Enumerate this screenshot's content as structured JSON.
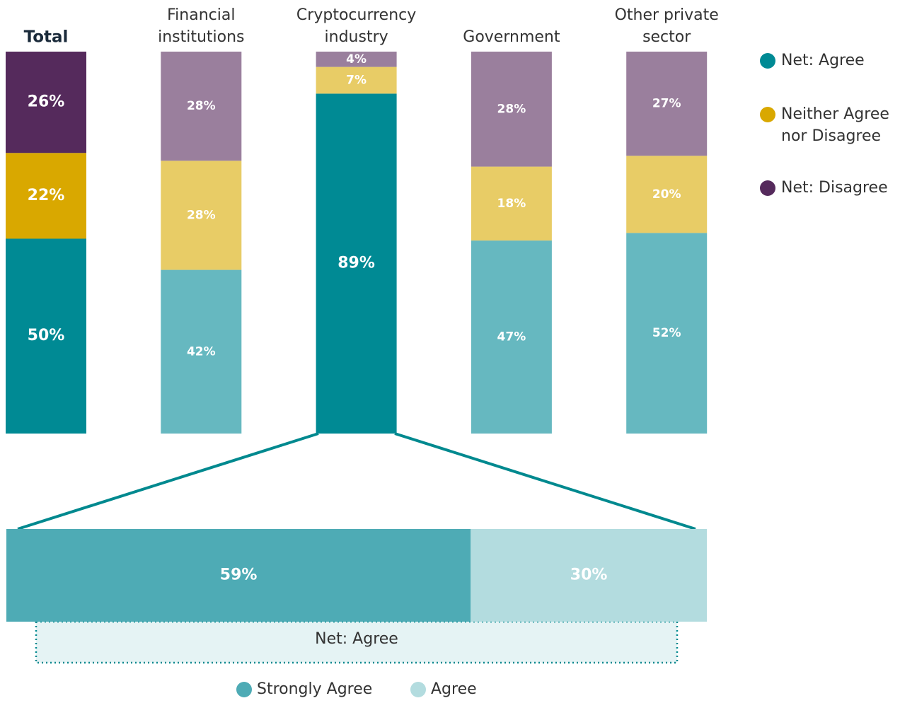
{
  "chart_data": [
    {
      "type": "bar",
      "stacked": true,
      "legend": "right",
      "categories": [
        "Total",
        "Financial institutions",
        "Cryptocurrency industry",
        "Government",
        "Other private sector"
      ],
      "series": [
        {
          "name": "Net: Agree",
          "color": "#008a94",
          "bar_colors": [
            "#008a94",
            "#66b8c0",
            "#008a94",
            "#66b8c0",
            "#66b8c0"
          ],
          "values": [
            50,
            42,
            89,
            47,
            52
          ],
          "value_labels": [
            "50%",
            "42%",
            "89%",
            "47%",
            "52%"
          ]
        },
        {
          "name": "Neither Agree nor Disagree",
          "color": "#d9a800",
          "bar_colors": [
            "#d9a800",
            "#e8cc66",
            "#e8cc66",
            "#e8cc66",
            "#e8cc66"
          ],
          "values": [
            22,
            28,
            7,
            18,
            20
          ],
          "value_labels": [
            "22%",
            "28%",
            "7%",
            "18%",
            "20%"
          ]
        },
        {
          "name": "Net: Disagree",
          "color": "#552a5c",
          "bar_colors": [
            "#552a5c",
            "#9a7f9d",
            "#9a7f9d",
            "#9a7f9d",
            "#9a7f9d"
          ],
          "values": [
            26,
            28,
            4,
            28,
            27
          ],
          "value_labels": [
            "26%",
            "28%",
            "4%",
            "28%",
            "27%"
          ]
        }
      ]
    },
    {
      "type": "bar",
      "stacked": true,
      "orientation": "horizontal",
      "legend": "bottom",
      "annotation": "Net: Agree",
      "series": [
        {
          "name": "Strongly Agree",
          "color": "#4eabb5",
          "values": [
            59
          ],
          "value_labels": [
            "59%"
          ]
        },
        {
          "name": "Agree",
          "color": "#b3dcdf",
          "values": [
            30
          ],
          "value_labels": [
            "30%"
          ]
        }
      ]
    }
  ]
}
